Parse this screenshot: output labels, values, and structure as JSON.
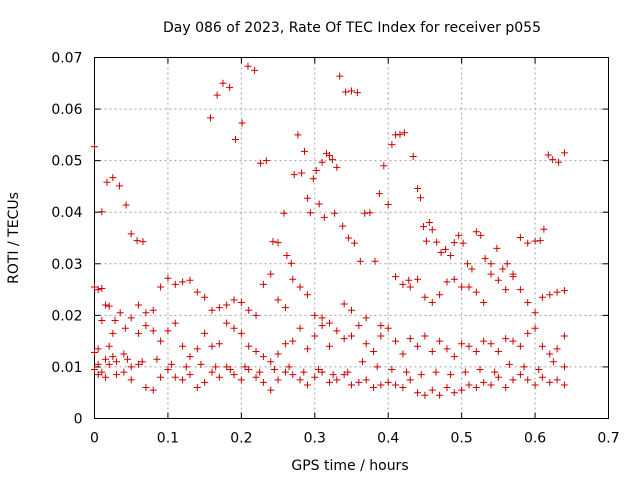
{
  "chart_data": {
    "type": "scatter",
    "title": "Day 086 of 2023, Rate Of TEC Index for receiver p055",
    "xlabel": "GPS time / hours",
    "ylabel": "ROTI / TECUs",
    "xlim": [
      0,
      0.7
    ],
    "ylim": [
      0,
      0.07
    ],
    "x_ticks": [
      "0",
      "0.1",
      "0.2",
      "0.3",
      "0.4",
      "0.5",
      "0.6",
      "0.7"
    ],
    "y_ticks": [
      "0",
      "0.01",
      "0.02",
      "0.03",
      "0.04",
      "0.05",
      "0.06",
      "0.07"
    ],
    "grid": true,
    "marker": "plus",
    "color": "#cc0000",
    "points": [
      [
        0.0,
        0.0527
      ],
      [
        0.01,
        0.0401
      ],
      [
        0.017,
        0.0458
      ],
      [
        0.025,
        0.0467
      ],
      [
        0.034,
        0.0451
      ],
      [
        0.043,
        0.0414
      ],
      [
        0.05,
        0.0358
      ],
      [
        0.058,
        0.0345
      ],
      [
        0.066,
        0.0343
      ],
      [
        0.158,
        0.0583
      ],
      [
        0.167,
        0.0627
      ],
      [
        0.175,
        0.065
      ],
      [
        0.184,
        0.0642
      ],
      [
        0.192,
        0.0541
      ],
      [
        0.201,
        0.0573
      ],
      [
        0.209,
        0.0683
      ],
      [
        0.218,
        0.0675
      ],
      [
        0.226,
        0.0495
      ],
      [
        0.234,
        0.05
      ],
      [
        0.243,
        0.0343
      ],
      [
        0.25,
        0.0341
      ],
      [
        0.258,
        0.0398
      ],
      [
        0.262,
        0.0316
      ],
      [
        0.268,
        0.0301
      ],
      [
        0.272,
        0.0473
      ],
      [
        0.277,
        0.055
      ],
      [
        0.282,
        0.0476
      ],
      [
        0.286,
        0.0518
      ],
      [
        0.29,
        0.0427
      ],
      [
        0.294,
        0.0399
      ],
      [
        0.298,
        0.0465
      ],
      [
        0.302,
        0.0481
      ],
      [
        0.306,
        0.0416
      ],
      [
        0.31,
        0.0497
      ],
      [
        0.313,
        0.039
      ],
      [
        0.316,
        0.0514
      ],
      [
        0.32,
        0.051
      ],
      [
        0.324,
        0.0502
      ],
      [
        0.327,
        0.0398
      ],
      [
        0.33,
        0.0487
      ],
      [
        0.334,
        0.0664
      ],
      [
        0.338,
        0.0373
      ],
      [
        0.342,
        0.0633
      ],
      [
        0.346,
        0.035
      ],
      [
        0.35,
        0.0635
      ],
      [
        0.354,
        0.034
      ],
      [
        0.358,
        0.0632
      ],
      [
        0.362,
        0.0305
      ],
      [
        0.368,
        0.0398
      ],
      [
        0.375,
        0.0399
      ],
      [
        0.382,
        0.0305
      ],
      [
        0.388,
        0.0436
      ],
      [
        0.394,
        0.049
      ],
      [
        0.4,
        0.0415
      ],
      [
        0.405,
        0.0531
      ],
      [
        0.41,
        0.055
      ],
      [
        0.416,
        0.0551
      ],
      [
        0.422,
        0.0554
      ],
      [
        0.428,
        0.0268
      ],
      [
        0.434,
        0.0508
      ],
      [
        0.44,
        0.0446
      ],
      [
        0.444,
        0.0428
      ],
      [
        0.448,
        0.0372
      ],
      [
        0.452,
        0.0344
      ],
      [
        0.456,
        0.038
      ],
      [
        0.46,
        0.0366
      ],
      [
        0.466,
        0.0342
      ],
      [
        0.472,
        0.0322
      ],
      [
        0.478,
        0.0328
      ],
      [
        0.485,
        0.0316
      ],
      [
        0.49,
        0.0341
      ],
      [
        0.496,
        0.0355
      ],
      [
        0.502,
        0.034
      ],
      [
        0.508,
        0.03
      ],
      [
        0.514,
        0.029
      ],
      [
        0.52,
        0.0362
      ],
      [
        0.526,
        0.0355
      ],
      [
        0.532,
        0.031
      ],
      [
        0.54,
        0.03
      ],
      [
        0.548,
        0.033
      ],
      [
        0.556,
        0.029
      ],
      [
        0.562,
        0.03
      ],
      [
        0.57,
        0.028
      ],
      [
        0.58,
        0.0351
      ],
      [
        0.59,
        0.034
      ],
      [
        0.6,
        0.0344
      ],
      [
        0.607,
        0.0345
      ],
      [
        0.612,
        0.0367
      ],
      [
        0.618,
        0.0511
      ],
      [
        0.624,
        0.0502
      ],
      [
        0.632,
        0.0497
      ],
      [
        0.64,
        0.0515
      ],
      [
        0.0,
        0.0255
      ],
      [
        0.005,
        0.025
      ],
      [
        0.01,
        0.0252
      ],
      [
        0.015,
        0.022
      ],
      [
        0.02,
        0.0218
      ],
      [
        0.028,
        0.019
      ],
      [
        0.035,
        0.0205
      ],
      [
        0.042,
        0.0175
      ],
      [
        0.05,
        0.0195
      ],
      [
        0.06,
        0.022
      ],
      [
        0.07,
        0.0205
      ],
      [
        0.08,
        0.021
      ],
      [
        0.09,
        0.0255
      ],
      [
        0.1,
        0.0272
      ],
      [
        0.11,
        0.026
      ],
      [
        0.12,
        0.0265
      ],
      [
        0.13,
        0.0268
      ],
      [
        0.14,
        0.0245
      ],
      [
        0.15,
        0.0235
      ],
      [
        0.16,
        0.021
      ],
      [
        0.17,
        0.0215
      ],
      [
        0.18,
        0.022
      ],
      [
        0.19,
        0.023
      ],
      [
        0.2,
        0.0225
      ],
      [
        0.21,
        0.021
      ],
      [
        0.22,
        0.02
      ],
      [
        0.23,
        0.026
      ],
      [
        0.24,
        0.028
      ],
      [
        0.25,
        0.023
      ],
      [
        0.26,
        0.0215
      ],
      [
        0.27,
        0.027
      ],
      [
        0.28,
        0.0255
      ],
      [
        0.29,
        0.024
      ],
      [
        0.3,
        0.02
      ],
      [
        0.31,
        0.0195
      ],
      [
        0.32,
        0.0185
      ],
      [
        0.34,
        0.0222
      ],
      [
        0.35,
        0.021
      ],
      [
        0.37,
        0.0195
      ],
      [
        0.39,
        0.018
      ],
      [
        0.41,
        0.0275
      ],
      [
        0.42,
        0.026
      ],
      [
        0.43,
        0.0255
      ],
      [
        0.44,
        0.027
      ],
      [
        0.45,
        0.0235
      ],
      [
        0.46,
        0.0225
      ],
      [
        0.47,
        0.024
      ],
      [
        0.48,
        0.0265
      ],
      [
        0.49,
        0.027
      ],
      [
        0.5,
        0.0255
      ],
      [
        0.51,
        0.0255
      ],
      [
        0.52,
        0.0245
      ],
      [
        0.53,
        0.0225
      ],
      [
        0.54,
        0.028
      ],
      [
        0.55,
        0.0268
      ],
      [
        0.56,
        0.025
      ],
      [
        0.57,
        0.0275
      ],
      [
        0.58,
        0.025
      ],
      [
        0.59,
        0.0225
      ],
      [
        0.6,
        0.0205
      ],
      [
        0.61,
        0.0235
      ],
      [
        0.62,
        0.024
      ],
      [
        0.63,
        0.0245
      ],
      [
        0.64,
        0.0248
      ],
      [
        0.0,
        0.0128
      ],
      [
        0.005,
        0.0135
      ],
      [
        0.01,
        0.019
      ],
      [
        0.015,
        0.0115
      ],
      [
        0.02,
        0.014
      ],
      [
        0.025,
        0.0165
      ],
      [
        0.03,
        0.011
      ],
      [
        0.04,
        0.0125
      ],
      [
        0.05,
        0.01
      ],
      [
        0.06,
        0.0165
      ],
      [
        0.07,
        0.018
      ],
      [
        0.08,
        0.017
      ],
      [
        0.09,
        0.015
      ],
      [
        0.1,
        0.017
      ],
      [
        0.11,
        0.0185
      ],
      [
        0.12,
        0.014
      ],
      [
        0.13,
        0.012
      ],
      [
        0.14,
        0.0135
      ],
      [
        0.15,
        0.0165
      ],
      [
        0.16,
        0.014
      ],
      [
        0.17,
        0.0145
      ],
      [
        0.18,
        0.0185
      ],
      [
        0.19,
        0.0175
      ],
      [
        0.2,
        0.0165
      ],
      [
        0.21,
        0.014
      ],
      [
        0.22,
        0.013
      ],
      [
        0.23,
        0.012
      ],
      [
        0.24,
        0.011
      ],
      [
        0.25,
        0.0125
      ],
      [
        0.26,
        0.0145
      ],
      [
        0.27,
        0.015
      ],
      [
        0.28,
        0.0175
      ],
      [
        0.29,
        0.0135
      ],
      [
        0.3,
        0.016
      ],
      [
        0.31,
        0.018
      ],
      [
        0.32,
        0.014
      ],
      [
        0.33,
        0.017
      ],
      [
        0.34,
        0.0155
      ],
      [
        0.35,
        0.016
      ],
      [
        0.36,
        0.018
      ],
      [
        0.37,
        0.0145
      ],
      [
        0.38,
        0.013
      ],
      [
        0.39,
        0.016
      ],
      [
        0.4,
        0.0175
      ],
      [
        0.41,
        0.015
      ],
      [
        0.42,
        0.0125
      ],
      [
        0.43,
        0.0155
      ],
      [
        0.44,
        0.014
      ],
      [
        0.45,
        0.016
      ],
      [
        0.46,
        0.013
      ],
      [
        0.47,
        0.015
      ],
      [
        0.48,
        0.0135
      ],
      [
        0.49,
        0.012
      ],
      [
        0.5,
        0.0145
      ],
      [
        0.51,
        0.014
      ],
      [
        0.52,
        0.013
      ],
      [
        0.53,
        0.015
      ],
      [
        0.54,
        0.0145
      ],
      [
        0.55,
        0.013
      ],
      [
        0.56,
        0.0155
      ],
      [
        0.57,
        0.015
      ],
      [
        0.58,
        0.014
      ],
      [
        0.59,
        0.0165
      ],
      [
        0.6,
        0.0175
      ],
      [
        0.61,
        0.014
      ],
      [
        0.62,
        0.0125
      ],
      [
        0.63,
        0.0135
      ],
      [
        0.64,
        0.016
      ],
      [
        0.0,
        0.0095
      ],
      [
        0.005,
        0.0085
      ],
      [
        0.01,
        0.009
      ],
      [
        0.015,
        0.008
      ],
      [
        0.02,
        0.0105
      ],
      [
        0.03,
        0.0085
      ],
      [
        0.04,
        0.009
      ],
      [
        0.05,
        0.0075
      ],
      [
        0.06,
        0.0105
      ],
      [
        0.07,
        0.006
      ],
      [
        0.08,
        0.0055
      ],
      [
        0.09,
        0.008
      ],
      [
        0.1,
        0.0095
      ],
      [
        0.11,
        0.008
      ],
      [
        0.12,
        0.0075
      ],
      [
        0.13,
        0.0085
      ],
      [
        0.14,
        0.006
      ],
      [
        0.15,
        0.007
      ],
      [
        0.16,
        0.009
      ],
      [
        0.17,
        0.008
      ],
      [
        0.18,
        0.01
      ],
      [
        0.19,
        0.0085
      ],
      [
        0.2,
        0.0075
      ],
      [
        0.21,
        0.0095
      ],
      [
        0.22,
        0.008
      ],
      [
        0.23,
        0.007
      ],
      [
        0.24,
        0.0055
      ],
      [
        0.25,
        0.0075
      ],
      [
        0.26,
        0.009
      ],
      [
        0.27,
        0.0085
      ],
      [
        0.28,
        0.0075
      ],
      [
        0.29,
        0.0065
      ],
      [
        0.3,
        0.008
      ],
      [
        0.31,
        0.009
      ],
      [
        0.32,
        0.007
      ],
      [
        0.33,
        0.0075
      ],
      [
        0.34,
        0.0085
      ],
      [
        0.35,
        0.0065
      ],
      [
        0.36,
        0.007
      ],
      [
        0.37,
        0.0075
      ],
      [
        0.38,
        0.006
      ],
      [
        0.39,
        0.0065
      ],
      [
        0.4,
        0.007
      ],
      [
        0.41,
        0.0065
      ],
      [
        0.42,
        0.006
      ],
      [
        0.43,
        0.0075
      ],
      [
        0.44,
        0.005
      ],
      [
        0.45,
        0.0045
      ],
      [
        0.46,
        0.0055
      ],
      [
        0.47,
        0.0045
      ],
      [
        0.48,
        0.006
      ],
      [
        0.49,
        0.005
      ],
      [
        0.5,
        0.0055
      ],
      [
        0.51,
        0.0065
      ],
      [
        0.52,
        0.006
      ],
      [
        0.53,
        0.007
      ],
      [
        0.54,
        0.0065
      ],
      [
        0.55,
        0.008
      ],
      [
        0.56,
        0.006
      ],
      [
        0.57,
        0.0075
      ],
      [
        0.58,
        0.0085
      ],
      [
        0.59,
        0.0075
      ],
      [
        0.6,
        0.0065
      ],
      [
        0.61,
        0.008
      ],
      [
        0.62,
        0.007
      ],
      [
        0.63,
        0.0075
      ],
      [
        0.64,
        0.0065
      ],
      [
        0.005,
        0.0105
      ],
      [
        0.025,
        0.012
      ],
      [
        0.045,
        0.0115
      ],
      [
        0.065,
        0.011
      ],
      [
        0.085,
        0.0115
      ],
      [
        0.105,
        0.0105
      ],
      [
        0.125,
        0.01
      ],
      [
        0.145,
        0.0105
      ],
      [
        0.165,
        0.01
      ],
      [
        0.185,
        0.0095
      ],
      [
        0.205,
        0.01
      ],
      [
        0.225,
        0.009
      ],
      [
        0.245,
        0.0095
      ],
      [
        0.265,
        0.01
      ],
      [
        0.285,
        0.009
      ],
      [
        0.305,
        0.0095
      ],
      [
        0.325,
        0.0085
      ],
      [
        0.345,
        0.009
      ],
      [
        0.365,
        0.011
      ],
      [
        0.385,
        0.01
      ],
      [
        0.405,
        0.0095
      ],
      [
        0.425,
        0.009
      ],
      [
        0.445,
        0.0085
      ],
      [
        0.465,
        0.009
      ],
      [
        0.485,
        0.0085
      ],
      [
        0.505,
        0.009
      ],
      [
        0.525,
        0.0095
      ],
      [
        0.545,
        0.009
      ],
      [
        0.565,
        0.0105
      ],
      [
        0.585,
        0.01
      ],
      [
        0.605,
        0.0095
      ],
      [
        0.625,
        0.011
      ],
      [
        0.64,
        0.01
      ]
    ]
  }
}
